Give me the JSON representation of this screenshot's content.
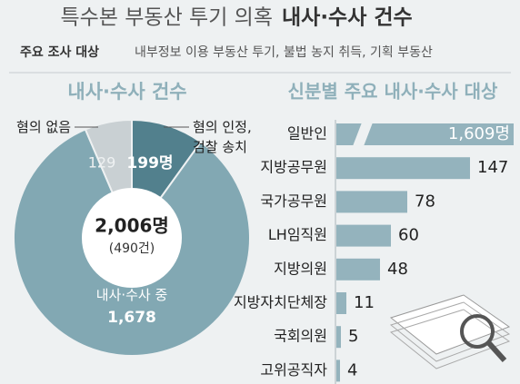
{
  "header": {
    "title": "특수본 부동산 투기 의혹",
    "title_bold": "내사·수사 건수",
    "subtitle_label": "주요 조사 대상",
    "subtitle": "내부정보 이용 부동산 투기, 불법 농지 취득, 기획 부동산"
  },
  "chart_data": [
    {
      "type": "pie",
      "title": "내사·수사 건수",
      "categories": [
        "혐의 인정, 검찰 송치",
        "내사·수사 중",
        "혐의 없음"
      ],
      "values": [
        199,
        1678,
        129
      ],
      "value_labels": [
        "199명",
        "1,678",
        "129"
      ],
      "colors": [
        "#52808d",
        "#82a8b3",
        "#c9d0d3"
      ],
      "center_label": "2,006명",
      "center_sublabel": "(490건)"
    },
    {
      "type": "bar",
      "title": "신분별 주요 내사·수사 대상",
      "categories": [
        "일반인",
        "지방공무원",
        "국가공무원",
        "LH임직원",
        "지방의원",
        "지방자치단체장",
        "국회의원",
        "고위공직자"
      ],
      "values": [
        1609,
        147,
        78,
        60,
        48,
        11,
        5,
        4
      ],
      "value_labels": [
        "1,609명",
        "147",
        "78",
        "60",
        "48",
        "11",
        "5",
        "4"
      ],
      "color": "#94b3bd"
    }
  ]
}
